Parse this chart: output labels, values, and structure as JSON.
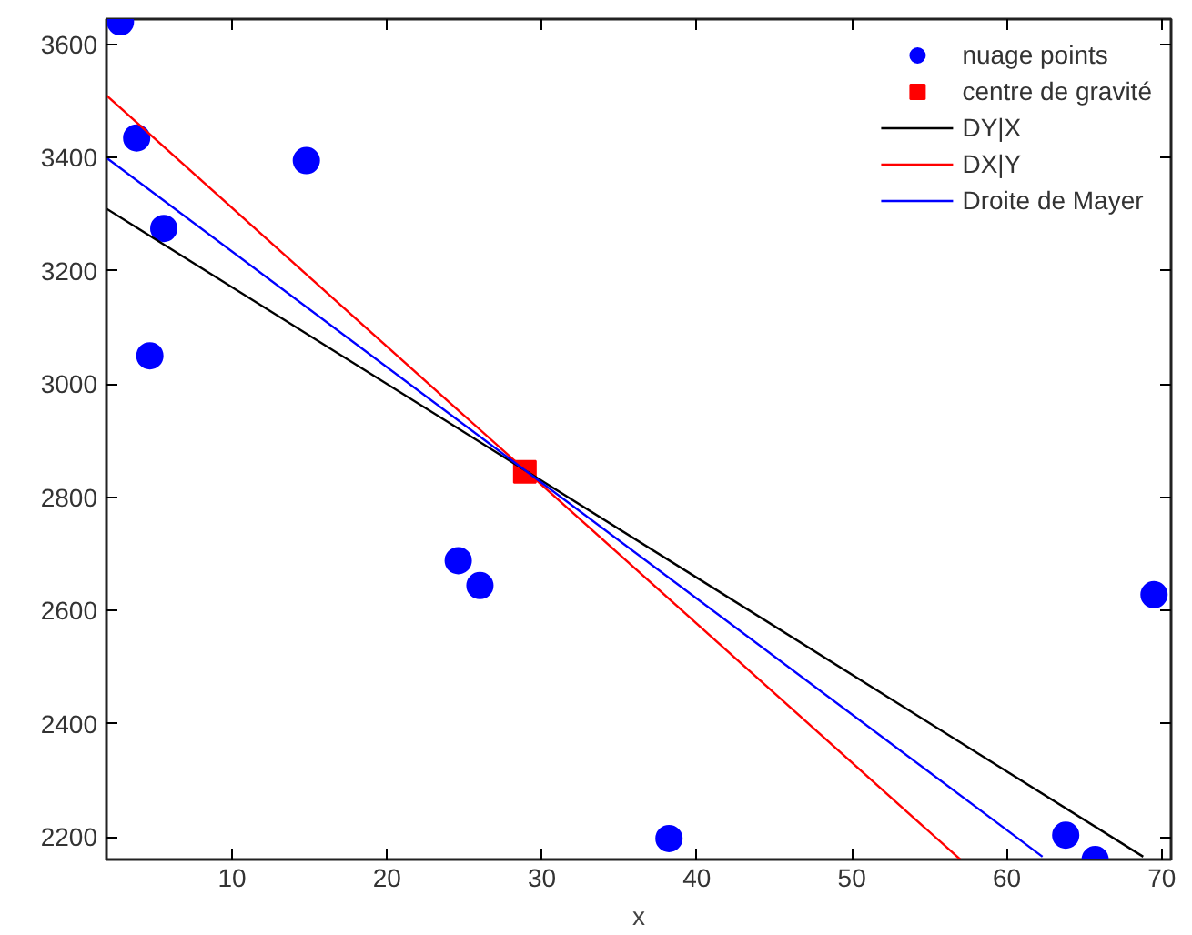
{
  "chart_data": {
    "type": "scatter",
    "xlabel": "x",
    "xlim": [
      1.9,
      70.6
    ],
    "ylim": [
      2160,
      3645
    ],
    "xticks": [
      10,
      20,
      30,
      40,
      50,
      60,
      70
    ],
    "yticks": [
      2200,
      2400,
      2600,
      2800,
      3000,
      3200,
      3400,
      3600
    ],
    "grid": false,
    "legend": "top right",
    "series": [
      {
        "name": "nuage points",
        "marker": "circle",
        "color": "#0000ff",
        "x": [
          2.8,
          3.85,
          5.6,
          4.7,
          14.8,
          24.6,
          26.0,
          38.2,
          63.8,
          65.7,
          69.5
        ],
        "values": [
          3640,
          3435,
          3275,
          3050,
          3395,
          2688,
          2644,
          2197,
          2203,
          2160,
          2628
        ]
      },
      {
        "name": "centre de gravité",
        "marker": "square",
        "color": "#ff0000",
        "x": [
          28.9
        ],
        "values": [
          2845
        ]
      },
      {
        "name": "DY|X",
        "type": "line",
        "color": "#000000",
        "x": [
          1.9,
          68.8
        ],
        "values": [
          3310,
          2165
        ]
      },
      {
        "name": "DX|Y",
        "type": "line",
        "color": "#ff0000",
        "x": [
          1.9,
          57.0
        ],
        "values": [
          3510,
          2160
        ]
      },
      {
        "name": "Droite de Mayer",
        "type": "line",
        "color": "#0000ff",
        "x": [
          1.9,
          62.3
        ],
        "values": [
          3400,
          2165
        ]
      }
    ]
  }
}
